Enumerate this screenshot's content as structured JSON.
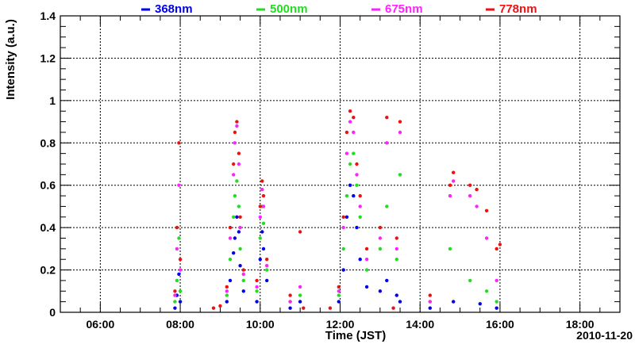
{
  "chart_data": {
    "type": "scatter",
    "title": "",
    "xlabel": "Time (JST)",
    "ylabel": "Intensity (a.u.)",
    "date_label": "2010-11-20",
    "ylim": [
      0,
      1.4
    ],
    "xlim": [
      "05:00",
      "19:00"
    ],
    "x_ticks": [
      "06:00",
      "08:00",
      "10:00",
      "12:00",
      "14:00",
      "16:00",
      "18:00"
    ],
    "y_ticks": [
      "0",
      "0.2",
      "0.4",
      "0.6",
      "0.8",
      "1",
      "1.2",
      "1.4"
    ],
    "grid": true,
    "legend_position": "top",
    "series": [
      {
        "name": "368nm",
        "color": "#0000ee",
        "points": [
          [
            "07:52",
            0.02
          ],
          [
            "07:55",
            0.08
          ],
          [
            "07:58",
            0.18
          ],
          [
            "08:00",
            0.05
          ],
          [
            "09:10",
            0.05
          ],
          [
            "09:15",
            0.15
          ],
          [
            "09:20",
            0.28
          ],
          [
            "09:22",
            0.35
          ],
          [
            "09:25",
            0.45
          ],
          [
            "09:28",
            0.38
          ],
          [
            "09:30",
            0.22
          ],
          [
            "09:35",
            0.1
          ],
          [
            "09:55",
            0.05
          ],
          [
            "10:00",
            0.25
          ],
          [
            "10:03",
            0.38
          ],
          [
            "10:05",
            0.3
          ],
          [
            "10:10",
            0.15
          ],
          [
            "10:45",
            0.02
          ],
          [
            "11:00",
            0.05
          ],
          [
            "11:58",
            0.05
          ],
          [
            "12:05",
            0.2
          ],
          [
            "12:10",
            0.45
          ],
          [
            "12:15",
            0.6
          ],
          [
            "12:20",
            0.55
          ],
          [
            "12:25",
            0.4
          ],
          [
            "12:30",
            0.25
          ],
          [
            "12:40",
            0.12
          ],
          [
            "13:00",
            0.1
          ],
          [
            "13:10",
            0.15
          ],
          [
            "13:25",
            0.08
          ],
          [
            "13:30",
            0.05
          ],
          [
            "14:15",
            0.02
          ],
          [
            "14:50",
            0.05
          ],
          [
            "15:30",
            0.04
          ],
          [
            "15:55",
            0.02
          ]
        ]
      },
      {
        "name": "500nm",
        "color": "#22dd22",
        "points": [
          [
            "07:52",
            0.05
          ],
          [
            "07:55",
            0.15
          ],
          [
            "07:58",
            0.35
          ],
          [
            "08:00",
            0.1
          ],
          [
            "09:10",
            0.08
          ],
          [
            "09:15",
            0.25
          ],
          [
            "09:20",
            0.45
          ],
          [
            "09:22",
            0.55
          ],
          [
            "09:25",
            0.62
          ],
          [
            "09:28",
            0.5
          ],
          [
            "09:30",
            0.3
          ],
          [
            "09:35",
            0.15
          ],
          [
            "09:55",
            0.1
          ],
          [
            "10:00",
            0.35
          ],
          [
            "10:03",
            0.5
          ],
          [
            "10:05",
            0.42
          ],
          [
            "10:10",
            0.2
          ],
          [
            "10:45",
            0.05
          ],
          [
            "11:00",
            0.08
          ],
          [
            "11:58",
            0.08
          ],
          [
            "12:05",
            0.3
          ],
          [
            "12:10",
            0.55
          ],
          [
            "12:15",
            0.7
          ],
          [
            "12:20",
            0.75
          ],
          [
            "12:25",
            0.6
          ],
          [
            "12:30",
            0.45
          ],
          [
            "12:40",
            0.2
          ],
          [
            "13:00",
            0.3
          ],
          [
            "13:10",
            0.5
          ],
          [
            "13:25",
            0.25
          ],
          [
            "13:30",
            0.65
          ],
          [
            "14:15",
            0.05
          ],
          [
            "14:45",
            0.3
          ],
          [
            "15:15",
            0.15
          ],
          [
            "15:40",
            0.1
          ],
          [
            "15:55",
            0.05
          ]
        ]
      },
      {
        "name": "675nm",
        "color": "#ff22ff",
        "points": [
          [
            "07:52",
            0.08
          ],
          [
            "07:55",
            0.3
          ],
          [
            "07:58",
            0.6
          ],
          [
            "08:00",
            0.2
          ],
          [
            "09:10",
            0.1
          ],
          [
            "09:15",
            0.35
          ],
          [
            "09:20",
            0.65
          ],
          [
            "09:22",
            0.8
          ],
          [
            "09:25",
            0.88
          ],
          [
            "09:28",
            0.7
          ],
          [
            "09:30",
            0.4
          ],
          [
            "09:35",
            0.18
          ],
          [
            "09:55",
            0.12
          ],
          [
            "10:00",
            0.45
          ],
          [
            "10:03",
            0.58
          ],
          [
            "10:05",
            0.5
          ],
          [
            "10:10",
            0.22
          ],
          [
            "10:45",
            0.05
          ],
          [
            "11:00",
            0.12
          ],
          [
            "11:58",
            0.1
          ],
          [
            "12:05",
            0.4
          ],
          [
            "12:10",
            0.75
          ],
          [
            "12:15",
            0.9
          ],
          [
            "12:20",
            0.85
          ],
          [
            "12:25",
            0.65
          ],
          [
            "12:30",
            0.5
          ],
          [
            "12:40",
            0.25
          ],
          [
            "13:00",
            0.35
          ],
          [
            "13:10",
            0.8
          ],
          [
            "13:25",
            0.3
          ],
          [
            "13:30",
            0.85
          ],
          [
            "14:15",
            0.05
          ],
          [
            "14:45",
            0.55
          ],
          [
            "14:50",
            0.62
          ],
          [
            "15:15",
            0.55
          ],
          [
            "15:25",
            0.5
          ],
          [
            "15:40",
            0.35
          ],
          [
            "15:55",
            0.15
          ]
        ]
      },
      {
        "name": "778nm",
        "color": "#ee1111",
        "points": [
          [
            "07:52",
            0.1
          ],
          [
            "07:55",
            0.4
          ],
          [
            "07:58",
            0.8
          ],
          [
            "08:00",
            0.25
          ],
          [
            "08:50",
            0.02
          ],
          [
            "09:00",
            0.03
          ],
          [
            "09:10",
            0.12
          ],
          [
            "09:15",
            0.4
          ],
          [
            "09:20",
            0.7
          ],
          [
            "09:22",
            0.85
          ],
          [
            "09:25",
            0.9
          ],
          [
            "09:28",
            0.75
          ],
          [
            "09:30",
            0.45
          ],
          [
            "09:35",
            0.2
          ],
          [
            "09:55",
            0.15
          ],
          [
            "10:00",
            0.5
          ],
          [
            "10:03",
            0.62
          ],
          [
            "10:05",
            0.55
          ],
          [
            "10:10",
            0.25
          ],
          [
            "10:45",
            0.08
          ],
          [
            "11:00",
            0.38
          ],
          [
            "11:05",
            0.02
          ],
          [
            "11:45",
            0.02
          ],
          [
            "11:58",
            0.12
          ],
          [
            "12:05",
            0.45
          ],
          [
            "12:10",
            0.85
          ],
          [
            "12:15",
            0.95
          ],
          [
            "12:20",
            0.92
          ],
          [
            "12:25",
            0.7
          ],
          [
            "12:30",
            0.55
          ],
          [
            "12:40",
            0.3
          ],
          [
            "13:00",
            0.4
          ],
          [
            "13:10",
            0.92
          ],
          [
            "13:20",
            0.02
          ],
          [
            "13:25",
            0.35
          ],
          [
            "13:30",
            0.9
          ],
          [
            "14:15",
            0.08
          ],
          [
            "14:45",
            0.6
          ],
          [
            "14:50",
            0.66
          ],
          [
            "15:15",
            0.6
          ],
          [
            "15:25",
            0.58
          ],
          [
            "15:40",
            0.48
          ],
          [
            "15:55",
            0.3
          ],
          [
            "16:00",
            0.32
          ]
        ]
      }
    ]
  }
}
